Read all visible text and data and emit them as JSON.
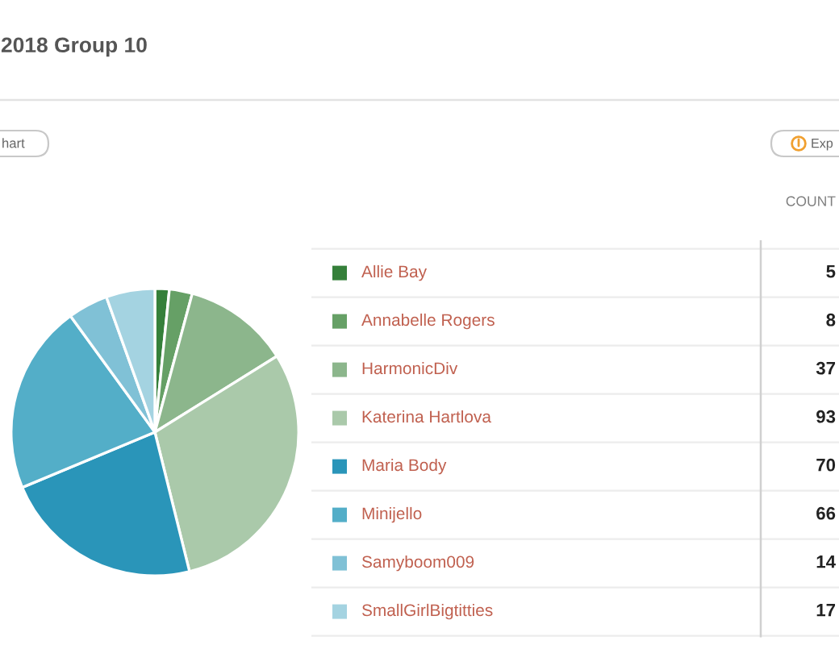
{
  "chart_data": {
    "type": "pie",
    "title": "2018 Group 10",
    "categories": [
      "Allie Bay",
      "Annabelle Rogers",
      "HarmonicDiv",
      "Katerina Hartlova",
      "Maria Body",
      "Minijello",
      "Samyboom009",
      "SmallGirlBigtitties"
    ],
    "values": [
      5,
      8,
      37,
      93,
      70,
      66,
      14,
      17
    ],
    "colors": [
      "#35803a",
      "#66a066",
      "#8cb68c",
      "#aac9aa",
      "#2a95b9",
      "#53aec8",
      "#80c1d6",
      "#a4d3e1"
    ],
    "data_labels": true,
    "legend": "right",
    "annotations": [
      "hart",
      "Exp",
      "COUNT"
    ]
  }
}
